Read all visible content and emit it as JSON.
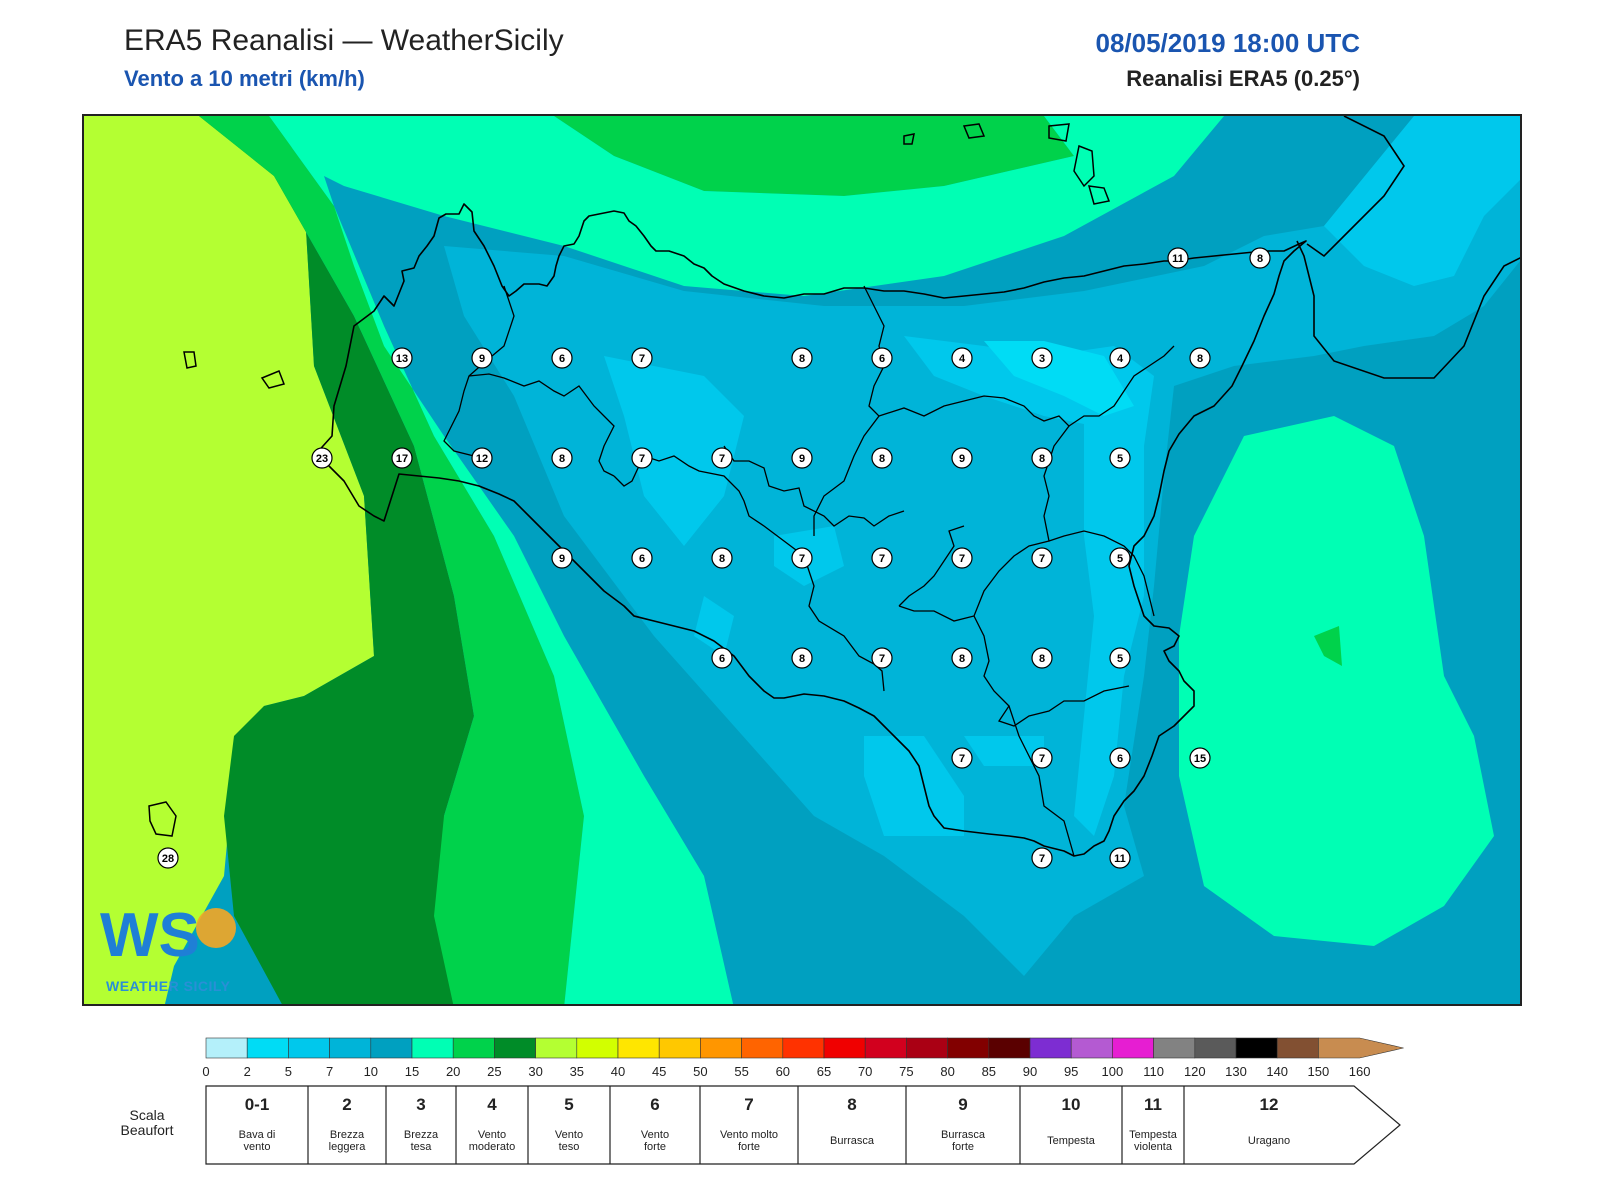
{
  "header": {
    "title": "ERA5 Reanalisi — WeatherSicily",
    "subtitle": "Vento a 10 metri (km/h)",
    "datetime": "08/05/2019 18:00 UTC",
    "source": "Reanalisi ERA5 (0.25°)"
  },
  "logo": {
    "text": "WS",
    "subtext": "WEATHER SICILY"
  },
  "wind_labels": [
    {
      "v": "11",
      "c": 1176,
      "r": 256
    },
    {
      "v": "8",
      "c": 1258,
      "r": 256
    },
    {
      "v": "13",
      "c": 400,
      "r": 356
    },
    {
      "v": "9",
      "c": 480,
      "r": 356
    },
    {
      "v": "6",
      "c": 560,
      "r": 356
    },
    {
      "v": "7",
      "c": 640,
      "r": 356
    },
    {
      "v": "8",
      "c": 800,
      "r": 356
    },
    {
      "v": "6",
      "c": 880,
      "r": 356
    },
    {
      "v": "4",
      "c": 960,
      "r": 356
    },
    {
      "v": "3",
      "c": 1040,
      "r": 356
    },
    {
      "v": "4",
      "c": 1118,
      "r": 356
    },
    {
      "v": "8",
      "c": 1198,
      "r": 356
    },
    {
      "v": "23",
      "c": 320,
      "r": 456
    },
    {
      "v": "17",
      "c": 400,
      "r": 456
    },
    {
      "v": "12",
      "c": 480,
      "r": 456
    },
    {
      "v": "8",
      "c": 560,
      "r": 456
    },
    {
      "v": "7",
      "c": 640,
      "r": 456
    },
    {
      "v": "7",
      "c": 720,
      "r": 456
    },
    {
      "v": "9",
      "c": 800,
      "r": 456
    },
    {
      "v": "8",
      "c": 880,
      "r": 456
    },
    {
      "v": "9",
      "c": 960,
      "r": 456
    },
    {
      "v": "8",
      "c": 1040,
      "r": 456
    },
    {
      "v": "5",
      "c": 1118,
      "r": 456
    },
    {
      "v": "9",
      "c": 560,
      "r": 556
    },
    {
      "v": "6",
      "c": 640,
      "r": 556
    },
    {
      "v": "8",
      "c": 720,
      "r": 556
    },
    {
      "v": "7",
      "c": 800,
      "r": 556
    },
    {
      "v": "7",
      "c": 880,
      "r": 556
    },
    {
      "v": "7",
      "c": 960,
      "r": 556
    },
    {
      "v": "7",
      "c": 1040,
      "r": 556
    },
    {
      "v": "5",
      "c": 1118,
      "r": 556
    },
    {
      "v": "6",
      "c": 720,
      "r": 656
    },
    {
      "v": "8",
      "c": 800,
      "r": 656
    },
    {
      "v": "7",
      "c": 880,
      "r": 656
    },
    {
      "v": "8",
      "c": 960,
      "r": 656
    },
    {
      "v": "8",
      "c": 1040,
      "r": 656
    },
    {
      "v": "5",
      "c": 1118,
      "r": 656
    },
    {
      "v": "7",
      "c": 960,
      "r": 756
    },
    {
      "v": "7",
      "c": 1040,
      "r": 756
    },
    {
      "v": "6",
      "c": 1118,
      "r": 756
    },
    {
      "v": "15",
      "c": 1198,
      "r": 756
    },
    {
      "v": "7",
      "c": 1040,
      "r": 856
    },
    {
      "v": "11",
      "c": 1118,
      "r": 856
    },
    {
      "v": "28",
      "c": 166,
      "r": 856
    }
  ],
  "colorbar": {
    "ticks": [
      "0",
      "2",
      "5",
      "7",
      "10",
      "15",
      "20",
      "25",
      "30",
      "35",
      "40",
      "45",
      "50",
      "55",
      "60",
      "65",
      "70",
      "75",
      "80",
      "85",
      "90",
      "95",
      "100",
      "110",
      "120",
      "130",
      "140",
      "150",
      "160"
    ],
    "colors": [
      "#b4f0fa",
      "#00dcf5",
      "#00c8ec",
      "#00b4d8",
      "#00a0c0",
      "#00ffb4",
      "#00d24b",
      "#008c28",
      "#b4ff32",
      "#d2ff00",
      "#ffe600",
      "#ffc800",
      "#ff9600",
      "#ff6400",
      "#ff3200",
      "#f00000",
      "#d2001e",
      "#aa0014",
      "#820000",
      "#5a0000",
      "#7d2dd2",
      "#b45ad2",
      "#e61ed2",
      "#828282",
      "#5a5a5a",
      "#000000",
      "#825032",
      "#c88c50"
    ]
  },
  "beaufort": {
    "label": "Scala Beaufort",
    "scale": [
      {
        "num": "0-1",
        "name": "Bava di vento"
      },
      {
        "num": "2",
        "name": "Brezza leggera"
      },
      {
        "num": "3",
        "name": "Brezza tesa"
      },
      {
        "num": "4",
        "name": "Vento moderato"
      },
      {
        "num": "5",
        "name": "Vento teso"
      },
      {
        "num": "6",
        "name": "Vento forte"
      },
      {
        "num": "7",
        "name": "Vento molto forte"
      },
      {
        "num": "8",
        "name": "Burrasca"
      },
      {
        "num": "9",
        "name": "Burrasca forte"
      },
      {
        "num": "10",
        "name": "Tempesta"
      },
      {
        "num": "11",
        "name": "Tempesta violenta"
      },
      {
        "num": "12",
        "name": "Uragano"
      }
    ]
  }
}
